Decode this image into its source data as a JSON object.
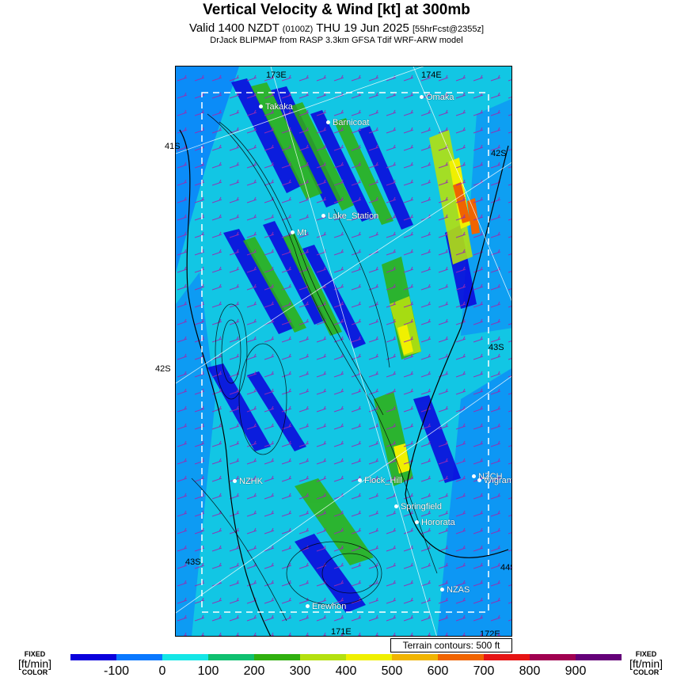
{
  "header": {
    "title": "Vertical Velocity & Wind [kt] at 300mb",
    "valid": "Valid 1400 NZDT",
    "valid_small": "(0100Z)",
    "date": "THU 19 Jun 2025",
    "forecast": "[55hrFcst@2355z]",
    "source": "DrJack BLIPMAP from RASP 3.3km GFSA Tdif WRF-ARW model"
  },
  "map": {
    "grid_labels": [
      "173E",
      "174E",
      "41S",
      "42S",
      "42S",
      "43S",
      "43S",
      "44S",
      "171E",
      "172E"
    ],
    "places": [
      "Takaka",
      "Barnicoat",
      "Omaka",
      "Lake_Station",
      "Mt",
      "NZHK",
      "Flock_Hill",
      "NZCH",
      "Wigram",
      "Springfield",
      "Hororata",
      "NZAS",
      "Erewhon"
    ]
  },
  "terrain_note": "Terrain contours: 500 ft",
  "legend": {
    "left": {
      "line1": "FIXED",
      "line2": "[ft/min]",
      "line3": "COLOR"
    },
    "right": {
      "line1": "FIXED",
      "line2": "[ft/min]",
      "line3": "COLOR"
    },
    "labels": [
      "-100",
      "0",
      "100",
      "200",
      "300",
      "400",
      "500",
      "600",
      "700",
      "800",
      "900"
    ],
    "colors": [
      "#0a00dc",
      "#0a78ff",
      "#14e6e6",
      "#10c070",
      "#30b010",
      "#b4e010",
      "#f0f000",
      "#f0b400",
      "#f06400",
      "#e61414",
      "#a00050",
      "#640078"
    ]
  }
}
